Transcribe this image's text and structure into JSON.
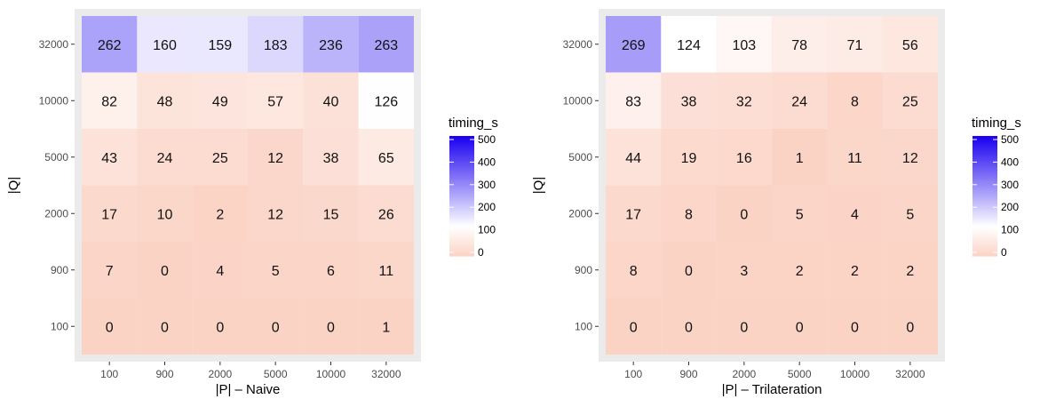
{
  "chart_data": [
    {
      "type": "heatmap",
      "xlabel": "|P| – Naive",
      "ylabel": "|Q|",
      "x_categories": [
        "100",
        "900",
        "2000",
        "5000",
        "10000",
        "32000"
      ],
      "y_categories": [
        "100",
        "900",
        "2000",
        "5000",
        "10000",
        "32000"
      ],
      "values": [
        [
          0,
          0,
          0,
          0,
          0,
          1
        ],
        [
          7,
          0,
          4,
          5,
          6,
          11
        ],
        [
          17,
          10,
          2,
          12,
          15,
          26
        ],
        [
          43,
          24,
          25,
          12,
          38,
          65
        ],
        [
          82,
          48,
          49,
          57,
          40,
          126
        ],
        [
          262,
          160,
          159,
          183,
          236,
          263
        ]
      ],
      "legend": {
        "title": "timing_s",
        "ticks": [
          "0",
          "100",
          "200",
          "300",
          "400",
          "500"
        ],
        "range": [
          0,
          500
        ],
        "colors": [
          "#fbd3c5",
          "#ffffff",
          "#1a00f0"
        ],
        "placement": "right"
      }
    },
    {
      "type": "heatmap",
      "xlabel": "|P| – Trilateration",
      "ylabel": "|Q|",
      "x_categories": [
        "100",
        "900",
        "2000",
        "5000",
        "10000",
        "32000"
      ],
      "y_categories": [
        "100",
        "900",
        "2000",
        "5000",
        "10000",
        "32000"
      ],
      "values": [
        [
          0,
          0,
          0,
          0,
          0,
          0
        ],
        [
          8,
          0,
          3,
          2,
          2,
          2
        ],
        [
          17,
          8,
          0,
          5,
          4,
          5
        ],
        [
          44,
          19,
          16,
          1,
          11,
          12
        ],
        [
          83,
          38,
          32,
          24,
          8,
          25
        ],
        [
          269,
          124,
          103,
          78,
          71,
          56
        ]
      ],
      "legend": {
        "title": "timing_s",
        "ticks": [
          "0",
          "100",
          "200",
          "300",
          "400",
          "500"
        ],
        "range": [
          0,
          500
        ],
        "colors": [
          "#fbd3c5",
          "#ffffff",
          "#1a00f0"
        ],
        "placement": "right"
      }
    }
  ]
}
